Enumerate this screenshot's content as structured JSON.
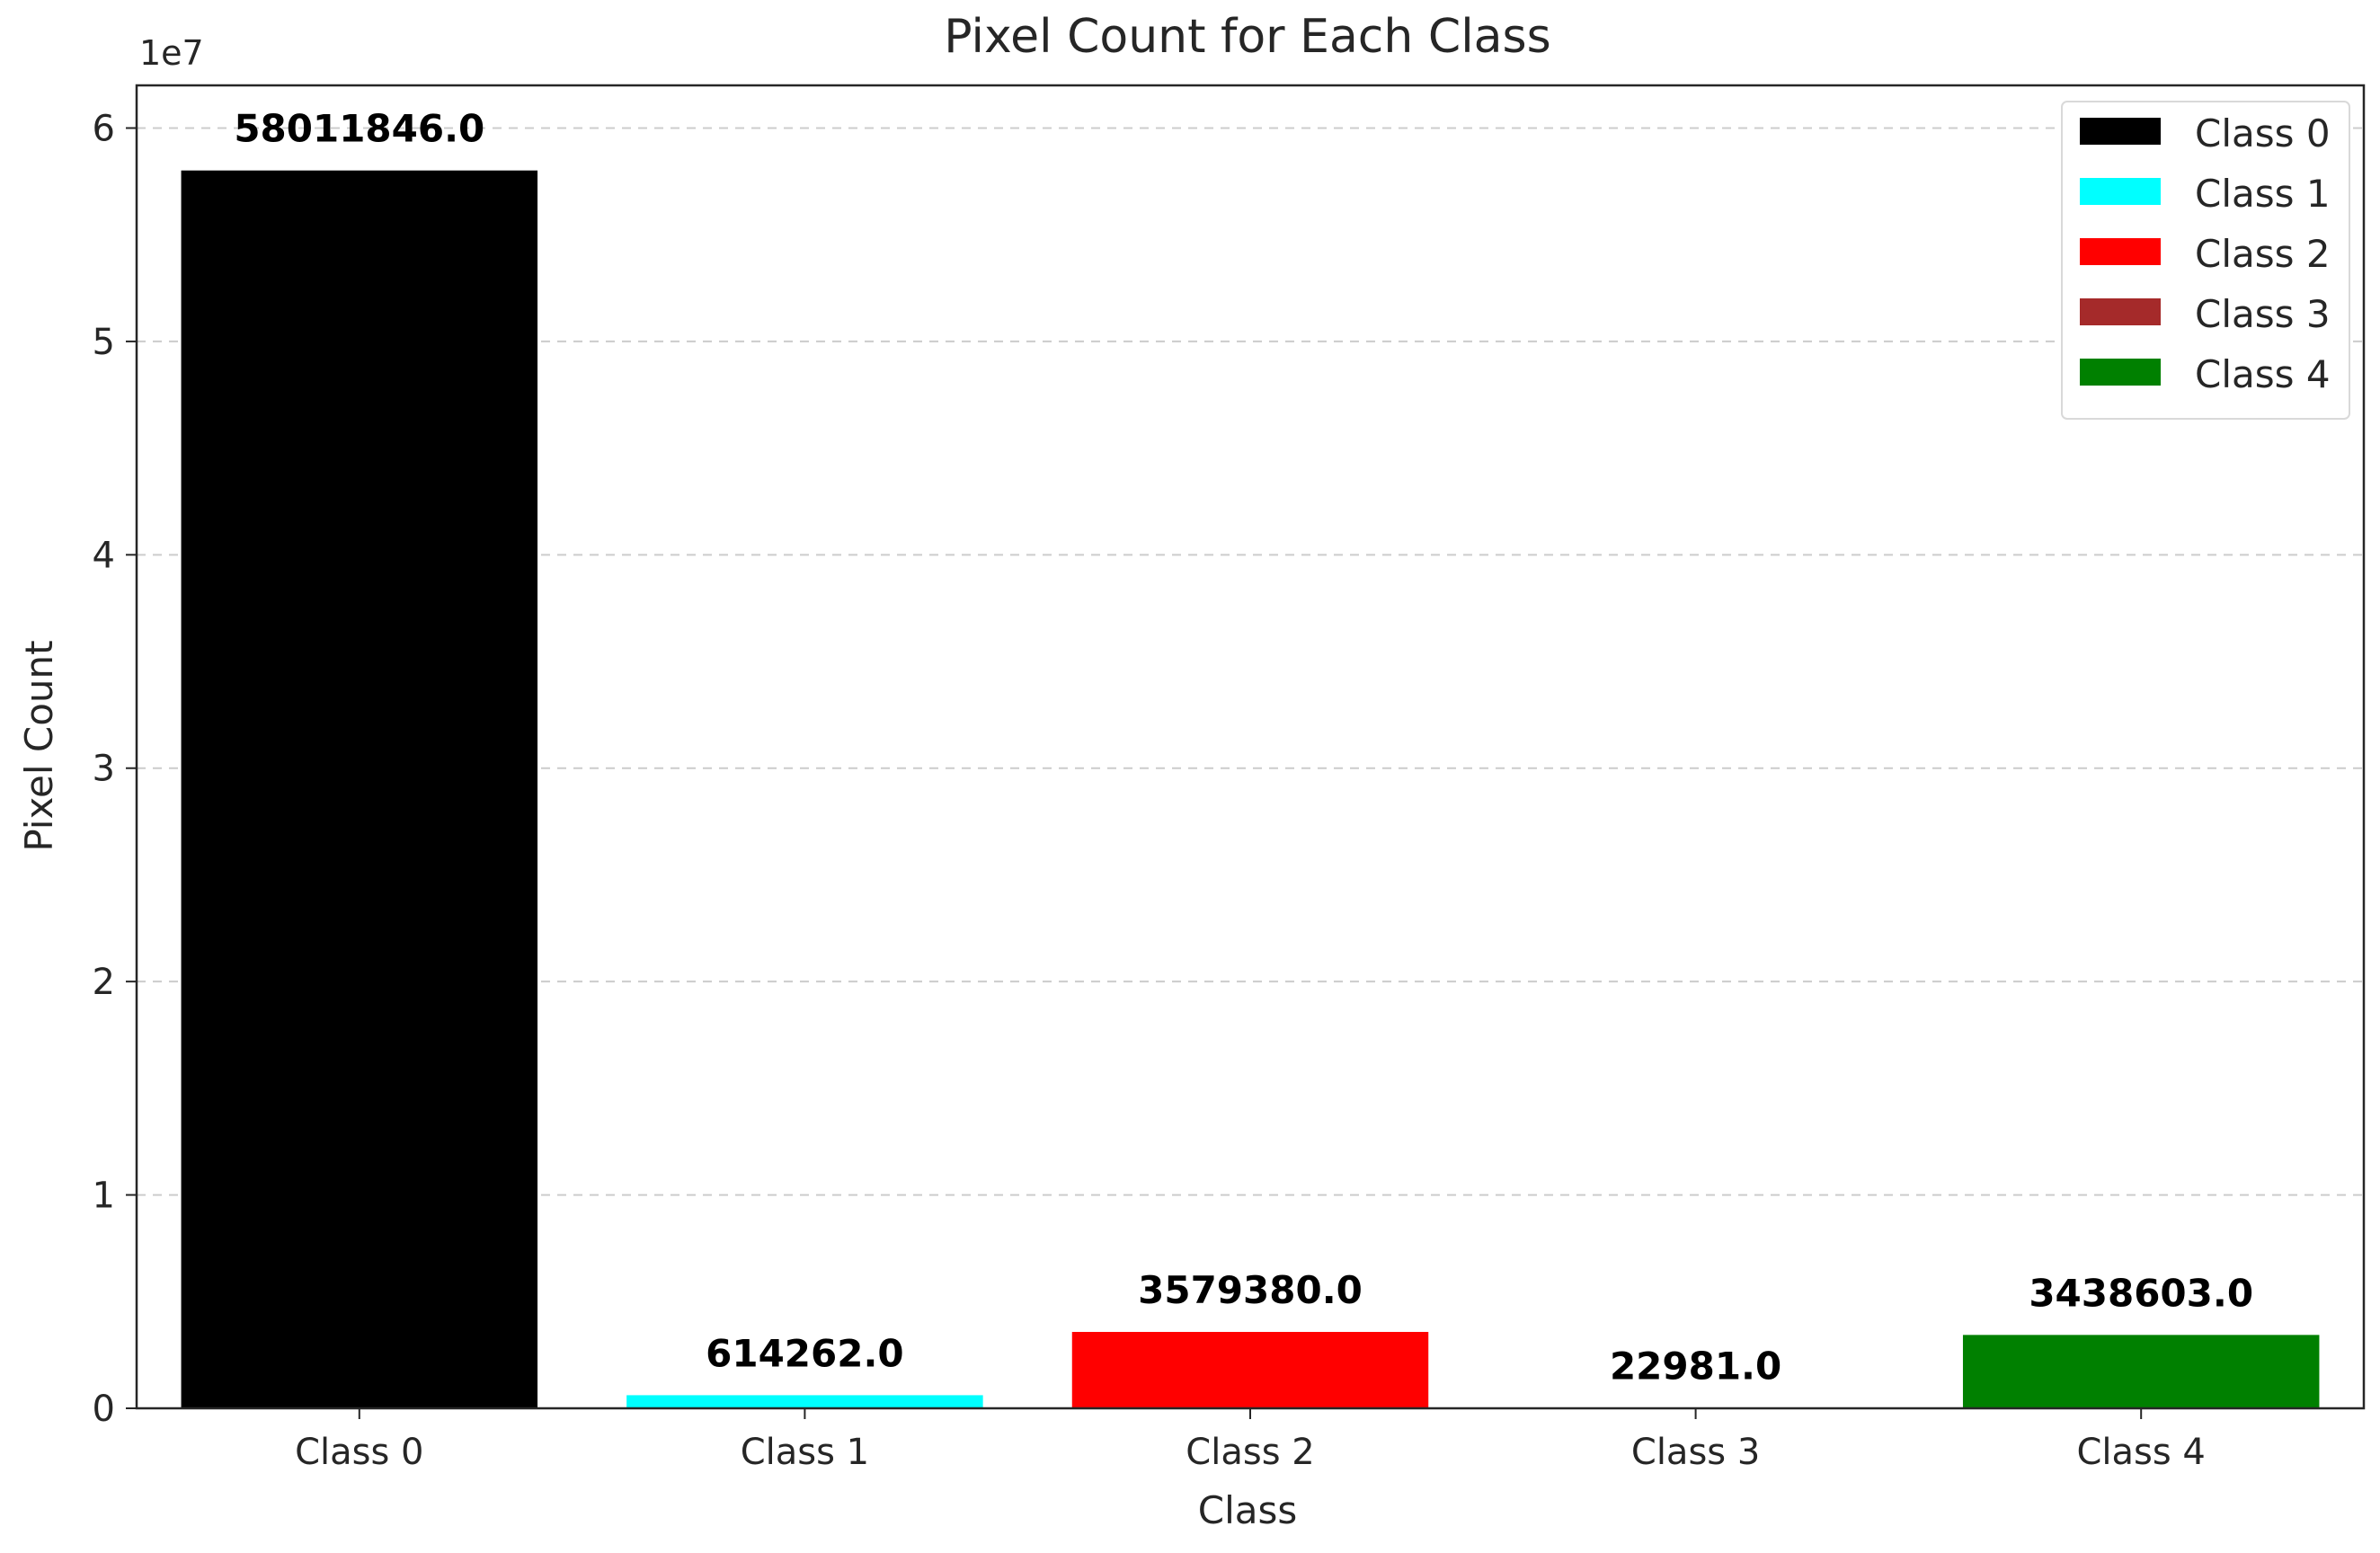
{
  "chart_data": {
    "type": "bar",
    "title": "Pixel Count for Each Class",
    "xlabel": "Class",
    "ylabel": "Pixel Count",
    "y_offset_label": "1e7",
    "y_tick_scale": 10000000,
    "ylim": [
      0,
      62000000
    ],
    "yticks": [
      0,
      10000000,
      20000000,
      30000000,
      40000000,
      50000000,
      60000000
    ],
    "ytick_labels": [
      "0",
      "1",
      "2",
      "3",
      "4",
      "5",
      "6"
    ],
    "categories": [
      "Class 0",
      "Class 1",
      "Class 2",
      "Class 3",
      "Class 4"
    ],
    "values": [
      58011846,
      614262,
      3579380,
      22981,
      3438603
    ],
    "data_labels": [
      "58011846.0",
      "614262.0",
      "3579380.0",
      "22981.0",
      "3438603.0"
    ],
    "colors": [
      "#000000",
      "#00ffff",
      "#ff0000",
      "#a52a2a",
      "#008000"
    ],
    "grid": "y-dashed",
    "legend": {
      "placement": "top-right",
      "entries": [
        "Class 0",
        "Class 1",
        "Class 2",
        "Class 3",
        "Class 4"
      ]
    }
  }
}
